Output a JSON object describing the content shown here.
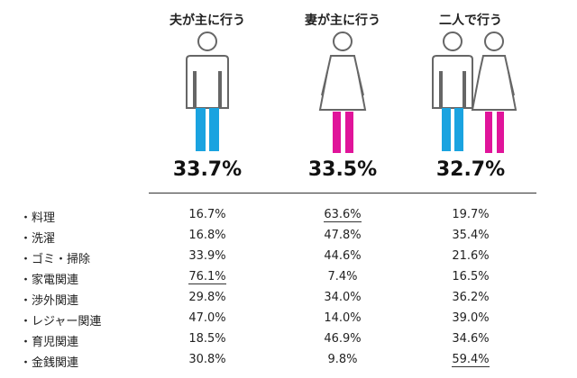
{
  "chart_data": {
    "type": "table",
    "columns": [
      "夫が主に行う",
      "妻が主に行う",
      "二人で行う"
    ],
    "totals": [
      "33.7%",
      "33.5%",
      "32.7%"
    ],
    "rows": [
      {
        "label": "・料理",
        "values": [
          "16.7%",
          "63.6%",
          "19.7%"
        ],
        "highlight": 1
      },
      {
        "label": "・洗濯",
        "values": [
          "16.8%",
          "47.8%",
          "35.4%"
        ],
        "highlight": null
      },
      {
        "label": "・ゴミ・掃除",
        "values": [
          "33.9%",
          "44.6%",
          "21.6%"
        ],
        "highlight": null
      },
      {
        "label": "・家電関連",
        "values": [
          "76.1%",
          "7.4%",
          "16.5%"
        ],
        "highlight": 0
      },
      {
        "label": "・渉外関連",
        "values": [
          "29.8%",
          "34.0%",
          "36.2%"
        ],
        "highlight": null
      },
      {
        "label": "・レジャー関連",
        "values": [
          "47.0%",
          "14.0%",
          "39.0%"
        ],
        "highlight": null
      },
      {
        "label": "・育児関連",
        "values": [
          "18.5%",
          "46.9%",
          "34.6%"
        ],
        "highlight": null
      },
      {
        "label": "・金銭関連",
        "values": [
          "30.8%",
          "9.8%",
          "59.4%"
        ],
        "highlight": 2
      }
    ],
    "colors": {
      "husband": "#1aa3e0",
      "wife": "#e0149a",
      "outline": "#666666"
    }
  }
}
